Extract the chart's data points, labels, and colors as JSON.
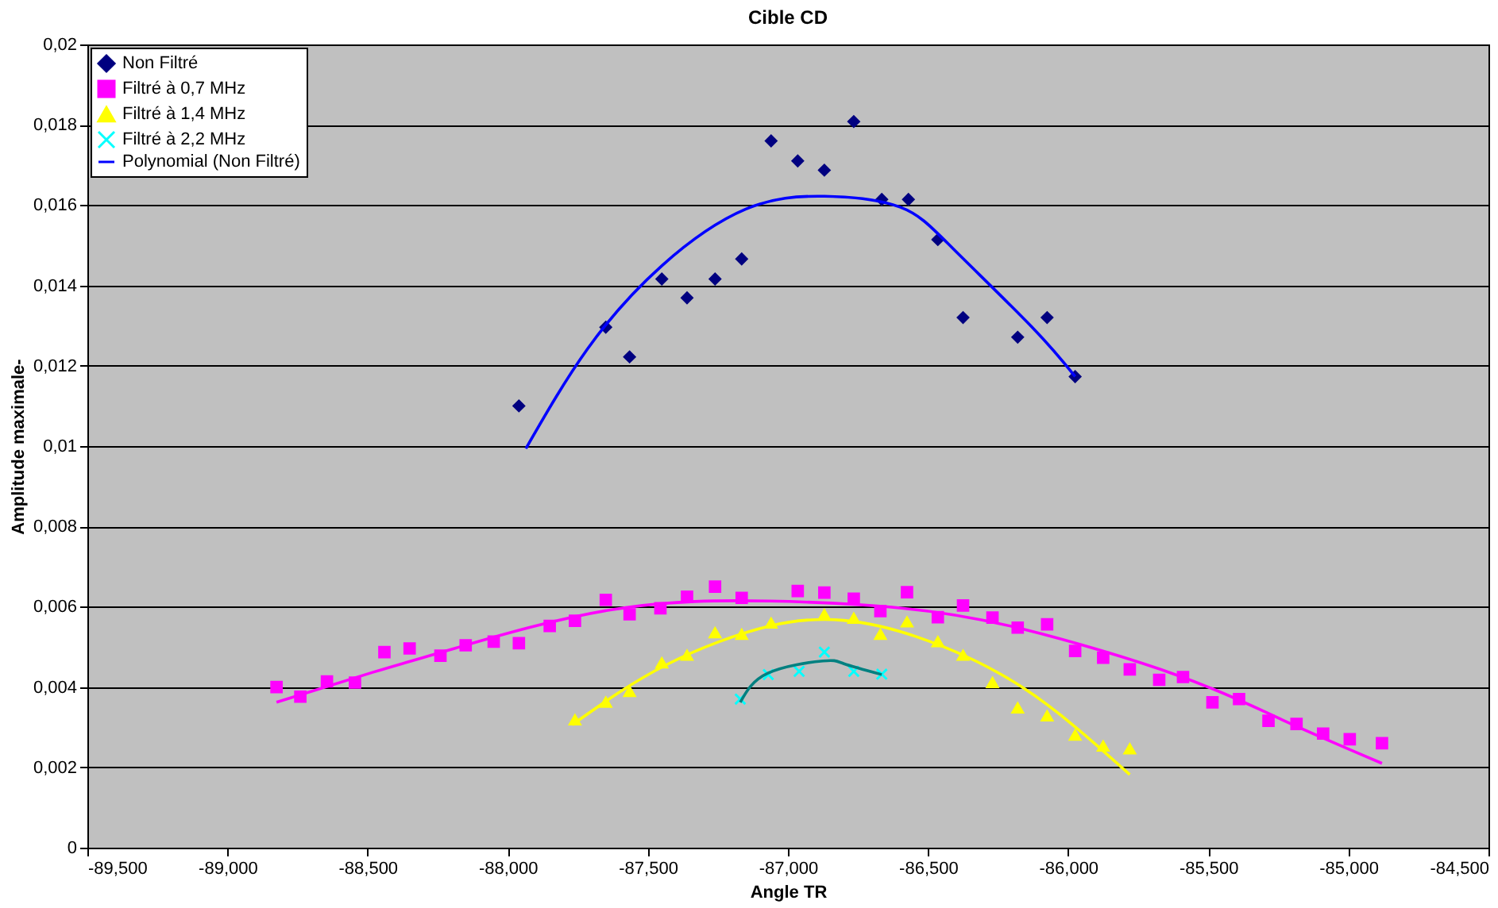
{
  "chart_data": {
    "type": "scatter",
    "title": "Cible CD",
    "xlabel": "Angle TR",
    "ylabel": "Amplitude maximale-",
    "xlim": [
      -89.5,
      -84.5
    ],
    "ylim": [
      0,
      0.02
    ],
    "xticks": [
      {
        "value": -89.5,
        "label": "-89,500"
      },
      {
        "value": -89,
        "label": "-89,000"
      },
      {
        "value": -88.5,
        "label": "-88,500"
      },
      {
        "value": -88,
        "label": "-88,000"
      },
      {
        "value": -87.5,
        "label": "-87,500"
      },
      {
        "value": -87,
        "label": "-87,000"
      },
      {
        "value": -86.5,
        "label": "-86,500"
      },
      {
        "value": -86,
        "label": "-86,000"
      },
      {
        "value": -85.5,
        "label": "-85,500"
      },
      {
        "value": -85,
        "label": "-85,000"
      },
      {
        "value": -84.5,
        "label": "-84,500"
      }
    ],
    "yticks": [
      0,
      {
        "value": 0.002,
        "label": "0,002"
      },
      {
        "value": 0.004,
        "label": "0,004"
      },
      {
        "value": 0.006,
        "label": "0,006"
      },
      {
        "value": 0.008,
        "label": "0,008"
      },
      {
        "value": 0.01,
        "label": "0,01"
      },
      {
        "value": 0.012,
        "label": "0,012"
      },
      {
        "value": 0.014,
        "label": "0,014"
      },
      {
        "value": 0.016,
        "label": "0,016"
      },
      {
        "value": 0.018,
        "label": "0,018"
      },
      {
        "value": 0.02,
        "label": "0,02"
      }
    ],
    "grid": "y",
    "legend": "top left",
    "series": [
      {
        "name": "Non Filtré",
        "marker": "diamond",
        "color": "#000080",
        "x": [
          -87.96,
          -87.65,
          -87.565,
          -87.45,
          -87.36,
          -87.26,
          -87.165,
          -87.06,
          -86.965,
          -86.87,
          -86.765,
          -86.665,
          -86.57,
          -86.465,
          -86.375,
          -86.18,
          -86.075,
          -85.975
        ],
        "values": [
          0.011,
          0.01296,
          0.01222,
          0.01416,
          0.01369,
          0.01416,
          0.01466,
          0.0176,
          0.0171,
          0.01687,
          0.01808,
          0.01614,
          0.01614,
          0.01514,
          0.0132,
          0.01271,
          0.0132,
          0.01173
        ]
      },
      {
        "name": "Filtré à 0,7 MHz",
        "marker": "square",
        "color": "#ff00ff",
        "x": [
          -88.825,
          -88.74,
          -88.645,
          -88.545,
          -88.44,
          -88.35,
          -88.24,
          -88.15,
          -88.05,
          -87.96,
          -87.85,
          -87.76,
          -87.65,
          -87.565,
          -87.455,
          -87.36,
          -87.26,
          -87.165,
          -86.965,
          -86.87,
          -86.765,
          -86.67,
          -86.575,
          -86.465,
          -86.375,
          -86.27,
          -86.18,
          -86.075,
          -85.975,
          -85.875,
          -85.78,
          -85.675,
          -85.59,
          -85.485,
          -85.39,
          -85.285,
          -85.185,
          -85.09,
          -84.995,
          -84.88
        ],
        "values": [
          0.004,
          0.00376,
          0.00414,
          0.00411,
          0.00487,
          0.00496,
          0.00478,
          0.00504,
          0.00513,
          0.00509,
          0.00552,
          0.00565,
          0.00617,
          0.00581,
          0.00596,
          0.00625,
          0.0065,
          0.00622,
          0.00639,
          0.00635,
          0.0062,
          0.00589,
          0.00636,
          0.00574,
          0.00603,
          0.00573,
          0.00548,
          0.00556,
          0.0049,
          0.00473,
          0.00444,
          0.00418,
          0.00425,
          0.00362,
          0.0037,
          0.00316,
          0.00308,
          0.00284,
          0.0027,
          0.0026
        ]
      },
      {
        "name": "Filtré à 1,4 MHz",
        "marker": "triangle",
        "color": "#ffff00",
        "x": [
          -87.76,
          -87.65,
          -87.565,
          -87.45,
          -87.36,
          -87.26,
          -87.165,
          -87.06,
          -86.87,
          -86.765,
          -86.67,
          -86.575,
          -86.465,
          -86.375,
          -86.27,
          -86.18,
          -86.075,
          -85.975,
          -85.875,
          -85.78
        ],
        "values": [
          0.00318,
          0.00362,
          0.00389,
          0.0046,
          0.00479,
          0.00535,
          0.00531,
          0.00559,
          0.0058,
          0.00571,
          0.00531,
          0.00562,
          0.00513,
          0.00479,
          0.00411,
          0.00348,
          0.00328,
          0.0028,
          0.00253,
          0.00246
        ]
      },
      {
        "name": "Filtré à 2,2 MHz",
        "marker": "cross",
        "color": "#00ffff",
        "x": [
          -87.17,
          -87.07,
          -86.96,
          -86.87,
          -86.765,
          -86.665
        ],
        "values": [
          0.0037,
          0.00431,
          0.00439,
          0.00487,
          0.00439,
          0.00432
        ]
      },
      {
        "name": "Polynomial (Non Filtré)",
        "type": "line",
        "line_style": "solid",
        "color": "#0000ff",
        "x": [
          -87.935,
          -87.715,
          -87.45,
          -87.15,
          -86.87,
          -86.6,
          -86.41,
          -86.13,
          -85.975
        ],
        "values": [
          0.00994,
          0.01242,
          0.01449,
          0.0159,
          0.01622,
          0.01595,
          0.01491,
          0.01297,
          0.01173
        ]
      },
      {
        "type": "line",
        "line_style": "solid",
        "color": "#ff00ff",
        "x": [
          -88.825,
          -88.48,
          -88.185,
          -87.625,
          -87.065,
          -86.6,
          -86.165,
          -85.605,
          -85.235,
          -84.88
        ],
        "values": [
          0.00362,
          0.00437,
          0.00497,
          0.00593,
          0.00614,
          0.00597,
          0.00545,
          0.00428,
          0.00318,
          0.0021
        ]
      },
      {
        "type": "line",
        "line_style": "solid",
        "color": "#ffff00",
        "x": [
          -87.77,
          -87.435,
          -87.065,
          -86.8,
          -86.54,
          -86.165,
          -85.78
        ],
        "values": [
          0.00306,
          0.00455,
          0.00552,
          0.00566,
          0.00525,
          0.004,
          0.00182
        ]
      },
      {
        "type": "line",
        "line_style": "solid",
        "color": "#008080",
        "x": [
          -87.17,
          -87.07,
          -86.875,
          -86.8,
          -86.665
        ],
        "values": [
          0.00362,
          0.00435,
          0.00465,
          0.00458,
          0.00431
        ]
      }
    ]
  }
}
